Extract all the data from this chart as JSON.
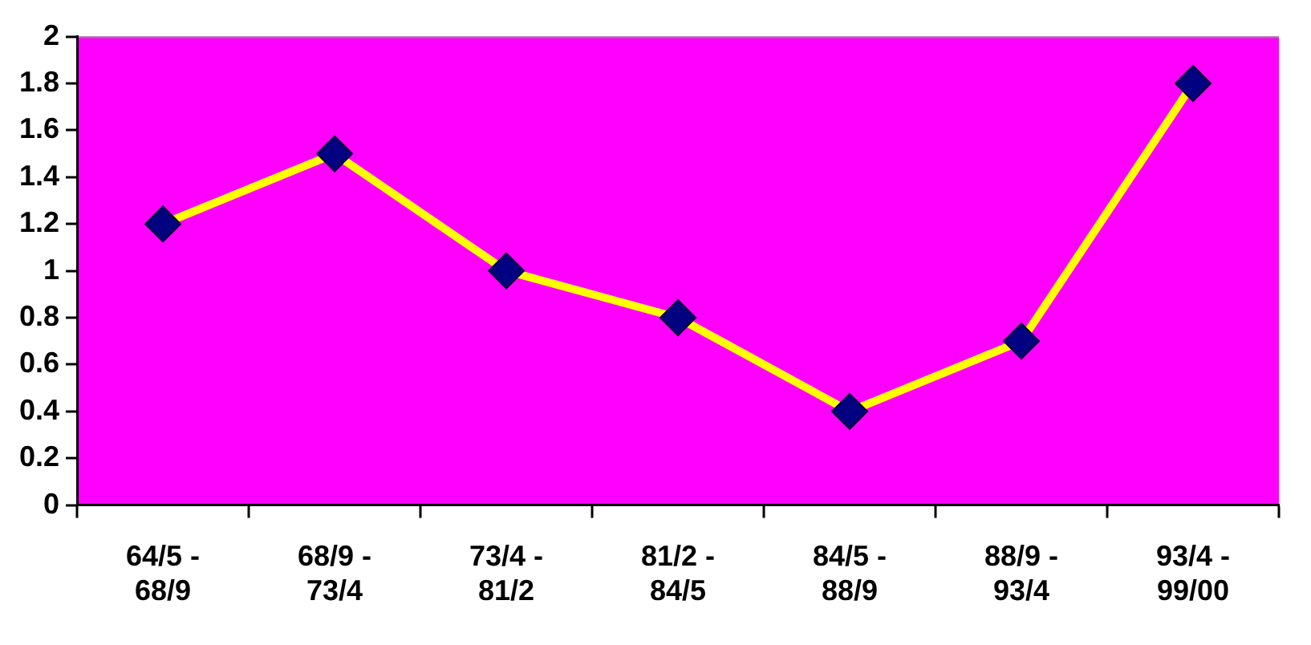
{
  "chart_data": {
    "type": "line",
    "categories": [
      "64/5 - 68/9",
      "68/9 - 73/4",
      "73/4 - 81/2",
      "81/2 - 84/5",
      "84/5 - 88/9",
      "88/9 - 93/4",
      "93/4 - 99/00"
    ],
    "series": [
      {
        "color": "#ffff00",
        "values": [
          1.2,
          1.5,
          1.0,
          0.8,
          0.4,
          0.7,
          1.8
        ]
      }
    ],
    "ylim": [
      0,
      2
    ],
    "yticks": [
      0,
      0.2,
      0.4,
      0.6,
      0.8,
      1,
      1.2,
      1.4,
      1.6,
      1.8,
      2
    ],
    "grid": false,
    "legend": false,
    "marker": "diamond",
    "line_style": "solid"
  }
}
